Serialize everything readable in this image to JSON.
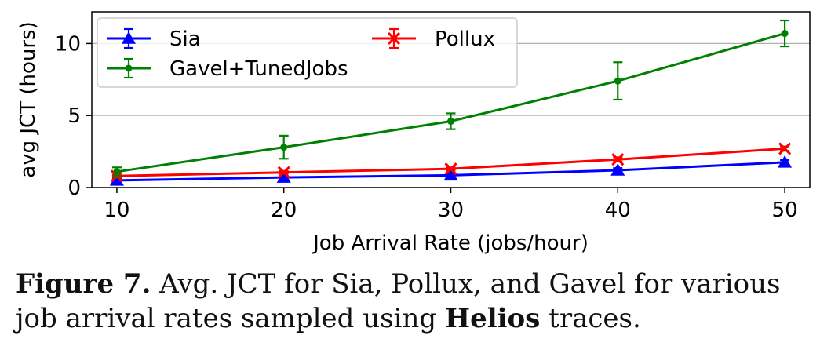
{
  "chart_data": {
    "type": "line",
    "xlabel": "Job Arrival Rate (jobs/hour)",
    "ylabel": "avg JCT (hours)",
    "xlim": [
      8.5,
      51.5
    ],
    "ylim": [
      0,
      12.2
    ],
    "x_ticks": [
      10,
      20,
      30,
      40,
      50
    ],
    "y_ticks": [
      0,
      5,
      10
    ],
    "grid": "horizontal",
    "legend_position": "top-left",
    "x": [
      10,
      20,
      30,
      40,
      50
    ],
    "series": [
      {
        "name": "Sia",
        "color": "#0000ff",
        "marker": "triangle",
        "values": [
          0.5,
          0.7,
          0.85,
          1.2,
          1.75
        ],
        "errors": [
          0.1,
          0.1,
          0.1,
          0.15,
          0.15
        ]
      },
      {
        "name": "Pollux",
        "color": "#ff0000",
        "marker": "x",
        "values": [
          0.8,
          1.05,
          1.3,
          1.95,
          2.7
        ],
        "errors": [
          0.1,
          0.1,
          0.1,
          0.15,
          0.15
        ]
      },
      {
        "name": "Gavel+TunedJobs",
        "color": "#008000",
        "marker": "dot",
        "values": [
          1.1,
          2.8,
          4.6,
          7.4,
          10.7
        ],
        "errors": [
          0.3,
          0.8,
          0.55,
          1.3,
          0.9
        ]
      }
    ]
  },
  "caption": {
    "label": "Figure 7.",
    "text_before": " Avg. JCT for Sia, Pollux, and Gavel for various job arrival rates sampled using ",
    "emphasis": "Helios",
    "text_after": " traces."
  }
}
